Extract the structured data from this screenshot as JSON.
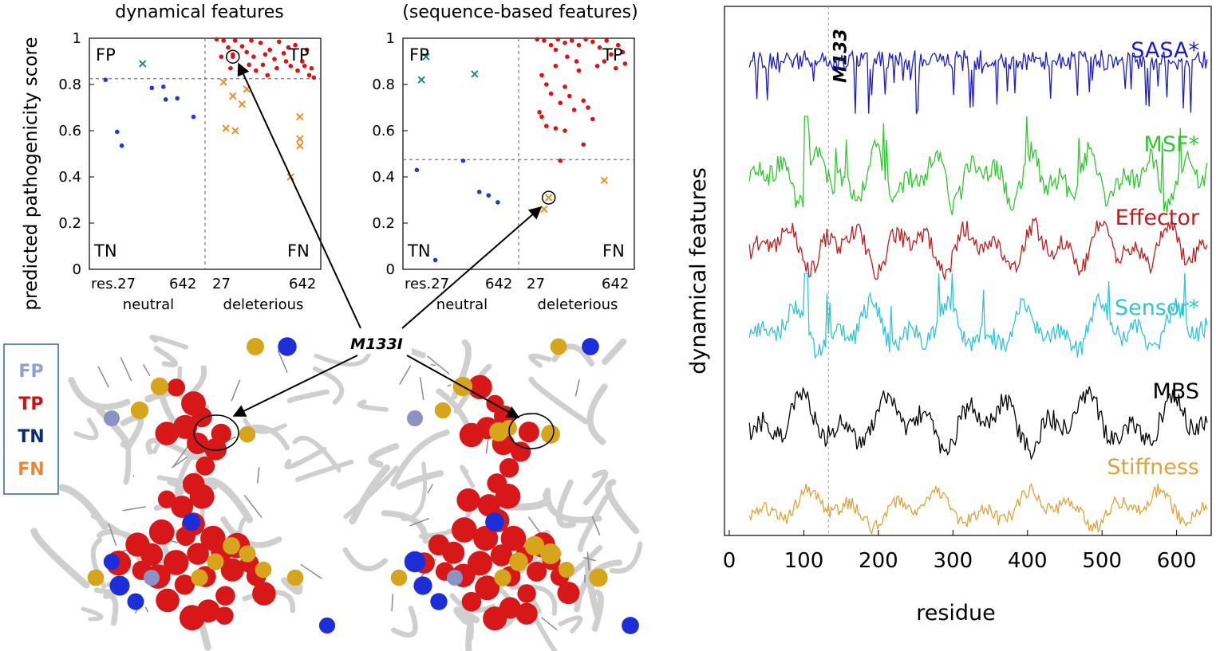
{
  "scatter_shared": {
    "ylabel": "predicted pathogenicity score",
    "quadrants": {
      "fp": "FP",
      "tp": "TP",
      "tn": "TN",
      "fn": "FN"
    },
    "yticks": [
      "0",
      "0.2",
      "0.4",
      "0.6",
      "0.8",
      "1"
    ],
    "tick_labels": {
      "neutral_start": "res.27",
      "neutral_end": "642",
      "del_start": "27",
      "del_end": "642"
    },
    "group_labels": {
      "neutral": "neutral",
      "deleterious": "deleterious"
    }
  },
  "annotation": {
    "mutation": "M133I",
    "marker": "M133"
  },
  "legend": {
    "items": [
      {
        "label": "FP",
        "color": "#8ea0d4"
      },
      {
        "label": "TP",
        "color": "#cc1111"
      },
      {
        "label": "TN",
        "color": "#0b2a73"
      },
      {
        "label": "FN",
        "color": "#e8873a"
      }
    ]
  },
  "colors": {
    "tn": "#1a3adf",
    "fp": "#1a8a8a",
    "tp": "#e21010",
    "fn": "#e8902c",
    "protein_cartoon": "#dcdcdc",
    "tp_spheres": "#d81818",
    "fn_spheres": "#d7a51c",
    "tn_spheres": "#1c2ed8",
    "fp_spheres": "#8a92c6"
  },
  "chart_data": [
    {
      "type": "scatter",
      "title": "dynamical features",
      "ylabel": "predicted pathogenicity score",
      "ylim": [
        0,
        1
      ],
      "threshold": 0.825,
      "series": [
        {
          "name": "TN",
          "points": [
            [
              0.07,
              0.82
            ],
            [
              0.12,
              0.595
            ],
            [
              0.14,
              0.535
            ],
            [
              0.27,
              0.785
            ],
            [
              0.32,
              0.79
            ],
            [
              0.33,
              0.735
            ],
            [
              0.38,
              0.74
            ],
            [
              0.45,
              0.66
            ]
          ]
        },
        {
          "name": "FP",
          "points": [
            [
              0.23,
              0.89
            ]
          ]
        },
        {
          "name": "TP",
          "points": [
            [
              0.55,
              0.995
            ],
            [
              0.58,
              0.99
            ],
            [
              0.6,
              0.96
            ],
            [
              0.62,
              0.93
            ],
            [
              0.63,
              0.99
            ],
            [
              0.66,
              0.965
            ],
            [
              0.68,
              0.94
            ],
            [
              0.7,
              0.99
            ],
            [
              0.71,
              0.92
            ],
            [
              0.74,
              0.98
            ],
            [
              0.75,
              0.885
            ],
            [
              0.76,
              0.93
            ],
            [
              0.78,
              0.95
            ],
            [
              0.8,
              0.91
            ],
            [
              0.82,
              0.985
            ],
            [
              0.84,
              0.935
            ],
            [
              0.86,
              0.96
            ],
            [
              0.87,
              0.88
            ],
            [
              0.89,
              0.97
            ],
            [
              0.9,
              0.86
            ],
            [
              0.92,
              0.9
            ],
            [
              0.94,
              0.95
            ],
            [
              0.95,
              0.84
            ],
            [
              0.96,
              0.87
            ],
            [
              0.97,
              0.83
            ],
            [
              0.57,
              0.92
            ],
            [
              0.61,
              0.87
            ],
            [
              0.65,
              0.86
            ],
            [
              0.69,
              0.885
            ],
            [
              0.72,
              0.86
            ],
            [
              0.77,
              0.84
            ],
            [
              0.81,
              0.87
            ],
            [
              0.85,
              0.9
            ],
            [
              0.93,
              0.88
            ],
            [
              0.62,
              0.92
            ]
          ]
        },
        {
          "name": "FN",
          "points": [
            [
              0.58,
              0.81
            ],
            [
              0.59,
              0.61
            ],
            [
              0.63,
              0.6
            ],
            [
              0.62,
              0.75
            ],
            [
              0.66,
              0.715
            ],
            [
              0.68,
              0.78
            ],
            [
              0.87,
              0.4
            ],
            [
              0.91,
              0.66
            ],
            [
              0.91,
              0.565
            ],
            [
              0.91,
              0.535
            ]
          ]
        }
      ],
      "highlight": [
        0.62,
        0.92
      ]
    },
    {
      "type": "scatter",
      "title": "(sequence-based features)",
      "ylabel": "",
      "ylim": [
        0,
        1
      ],
      "threshold": 0.475,
      "series": [
        {
          "name": "TN",
          "points": [
            [
              0.06,
              0.43
            ],
            [
              0.14,
              0.04
            ],
            [
              0.26,
              0.47
            ],
            [
              0.33,
              0.335
            ],
            [
              0.37,
              0.32
            ],
            [
              0.41,
              0.29
            ]
          ]
        },
        {
          "name": "FP",
          "points": [
            [
              0.1,
              0.92
            ],
            [
              0.08,
              0.82
            ],
            [
              0.31,
              0.845
            ]
          ]
        },
        {
          "name": "TP",
          "points": [
            [
              0.58,
              0.995
            ],
            [
              0.61,
              0.99
            ],
            [
              0.64,
              0.97
            ],
            [
              0.67,
              0.995
            ],
            [
              0.7,
              0.98
            ],
            [
              0.73,
              0.99
            ],
            [
              0.76,
              0.97
            ],
            [
              0.79,
              0.995
            ],
            [
              0.82,
              0.985
            ],
            [
              0.85,
              0.96
            ],
            [
              0.88,
              0.99
            ],
            [
              0.9,
              0.93
            ],
            [
              0.93,
              0.97
            ],
            [
              0.95,
              0.94
            ],
            [
              0.96,
              0.89
            ],
            [
              0.6,
              0.84
            ],
            [
              0.62,
              0.8
            ],
            [
              0.64,
              0.76
            ],
            [
              0.66,
              0.88
            ],
            [
              0.68,
              0.72
            ],
            [
              0.7,
              0.79
            ],
            [
              0.72,
              0.75
            ],
            [
              0.74,
              0.69
            ],
            [
              0.76,
              0.86
            ],
            [
              0.78,
              0.73
            ],
            [
              0.8,
              0.7
            ],
            [
              0.82,
              0.65
            ],
            [
              0.59,
              0.68
            ],
            [
              0.6,
              0.66
            ],
            [
              0.62,
              0.62
            ],
            [
              0.66,
              0.61
            ],
            [
              0.71,
              0.92
            ],
            [
              0.75,
              0.9
            ],
            [
              0.84,
              0.88
            ],
            [
              0.68,
              0.47
            ],
            [
              0.78,
              0.54
            ],
            [
              0.87,
              0.9
            ],
            [
              0.66,
              0.95
            ],
            [
              0.92,
              0.87
            ],
            [
              0.7,
              0.6
            ]
          ]
        },
        {
          "name": "FN",
          "points": [
            [
              0.63,
              0.31
            ],
            [
              0.61,
              0.26
            ],
            [
              0.87,
              0.385
            ]
          ]
        }
      ],
      "highlight": [
        0.63,
        0.31
      ]
    },
    {
      "type": "line",
      "title": "",
      "xlabel": "residue",
      "ylabel": "dynamical features",
      "xlim": [
        0,
        640
      ],
      "xticks": [
        0,
        100,
        200,
        300,
        400,
        500,
        600
      ],
      "x_range": [
        27,
        642
      ],
      "marker_residue": 133,
      "series": [
        {
          "name": "SASA*",
          "color": "#1b1bd6"
        },
        {
          "name": "MSF*",
          "color": "#2fc82f"
        },
        {
          "name": "Effector",
          "color": "#c41a1a"
        },
        {
          "name": "Sensor*",
          "color": "#2ec5d6"
        },
        {
          "name": "MBS",
          "color": "#000000"
        },
        {
          "name": "Stiffness",
          "color": "#e0a23a"
        }
      ]
    }
  ]
}
